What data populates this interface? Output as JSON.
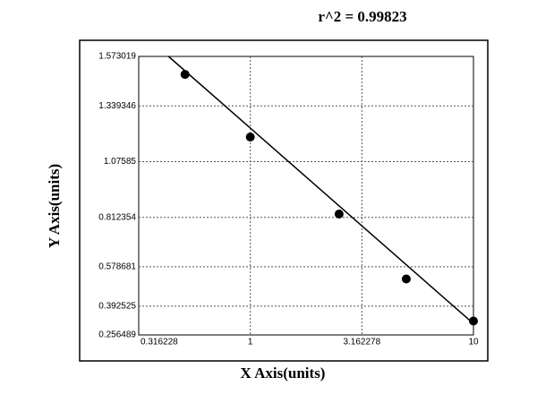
{
  "chart_data": {
    "type": "scatter",
    "title": "r^2 = 0.99823",
    "x_label": "X Axis(units)",
    "y_label": "Y Axis(units)",
    "xscale": "log",
    "grid": true,
    "xlim": [
      0.316228,
      10
    ],
    "xticks": [
      0.316228,
      1,
      3.162278,
      10
    ],
    "ylim": [
      0.256489,
      1.573019
    ],
    "yticks": [
      0.256489,
      0.392525,
      0.578681,
      0.812354,
      1.07585,
      1.339346,
      1.573019
    ],
    "series": [
      {
        "color": "#000000",
        "x": [
          0.51,
          1.0,
          2.5,
          5.0,
          10
        ],
        "values": [
          1.488,
          1.192,
          0.828,
          0.521,
          0.322
        ]
      }
    ],
    "fit_line": {
      "color": "#000000",
      "x": [
        0.43,
        10
      ],
      "values": [
        1.573019,
        0.31
      ]
    }
  }
}
